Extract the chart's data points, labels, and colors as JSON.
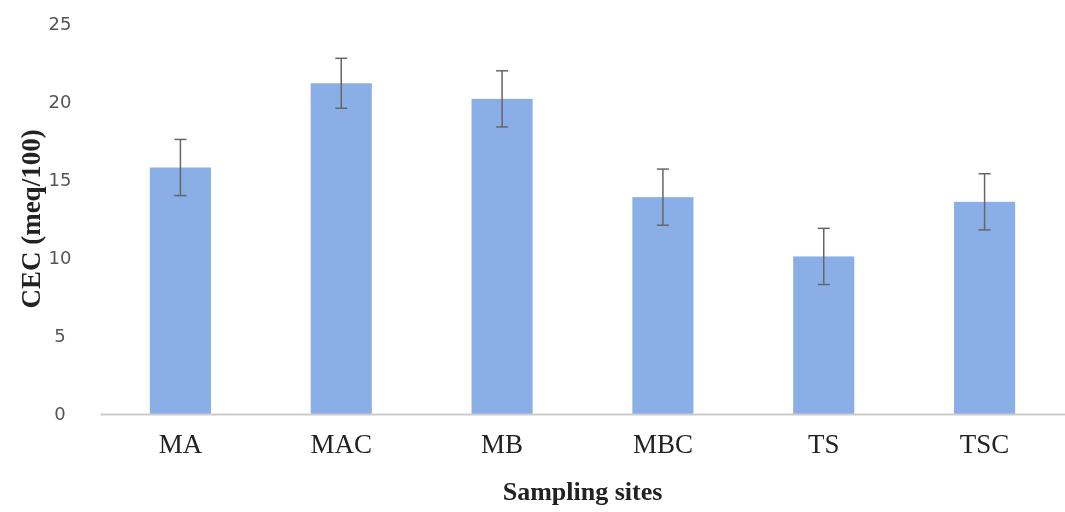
{
  "chart_data": {
    "type": "bar",
    "xlabel": "Sampling sites",
    "ylabel": "CEC (meq/100)",
    "categories": [
      "MA",
      "MAC",
      "MB",
      "MBC",
      "TS",
      "TSC"
    ],
    "values": [
      15.8,
      21.2,
      20.2,
      13.9,
      10.1,
      13.6
    ],
    "errors": [
      1.8,
      1.6,
      1.8,
      1.8,
      1.8,
      1.8
    ],
    "color": "#8aaee6",
    "ylim": [
      0,
      25
    ],
    "yticks": [
      0,
      5,
      10,
      15,
      20,
      25
    ],
    "grid": false
  }
}
